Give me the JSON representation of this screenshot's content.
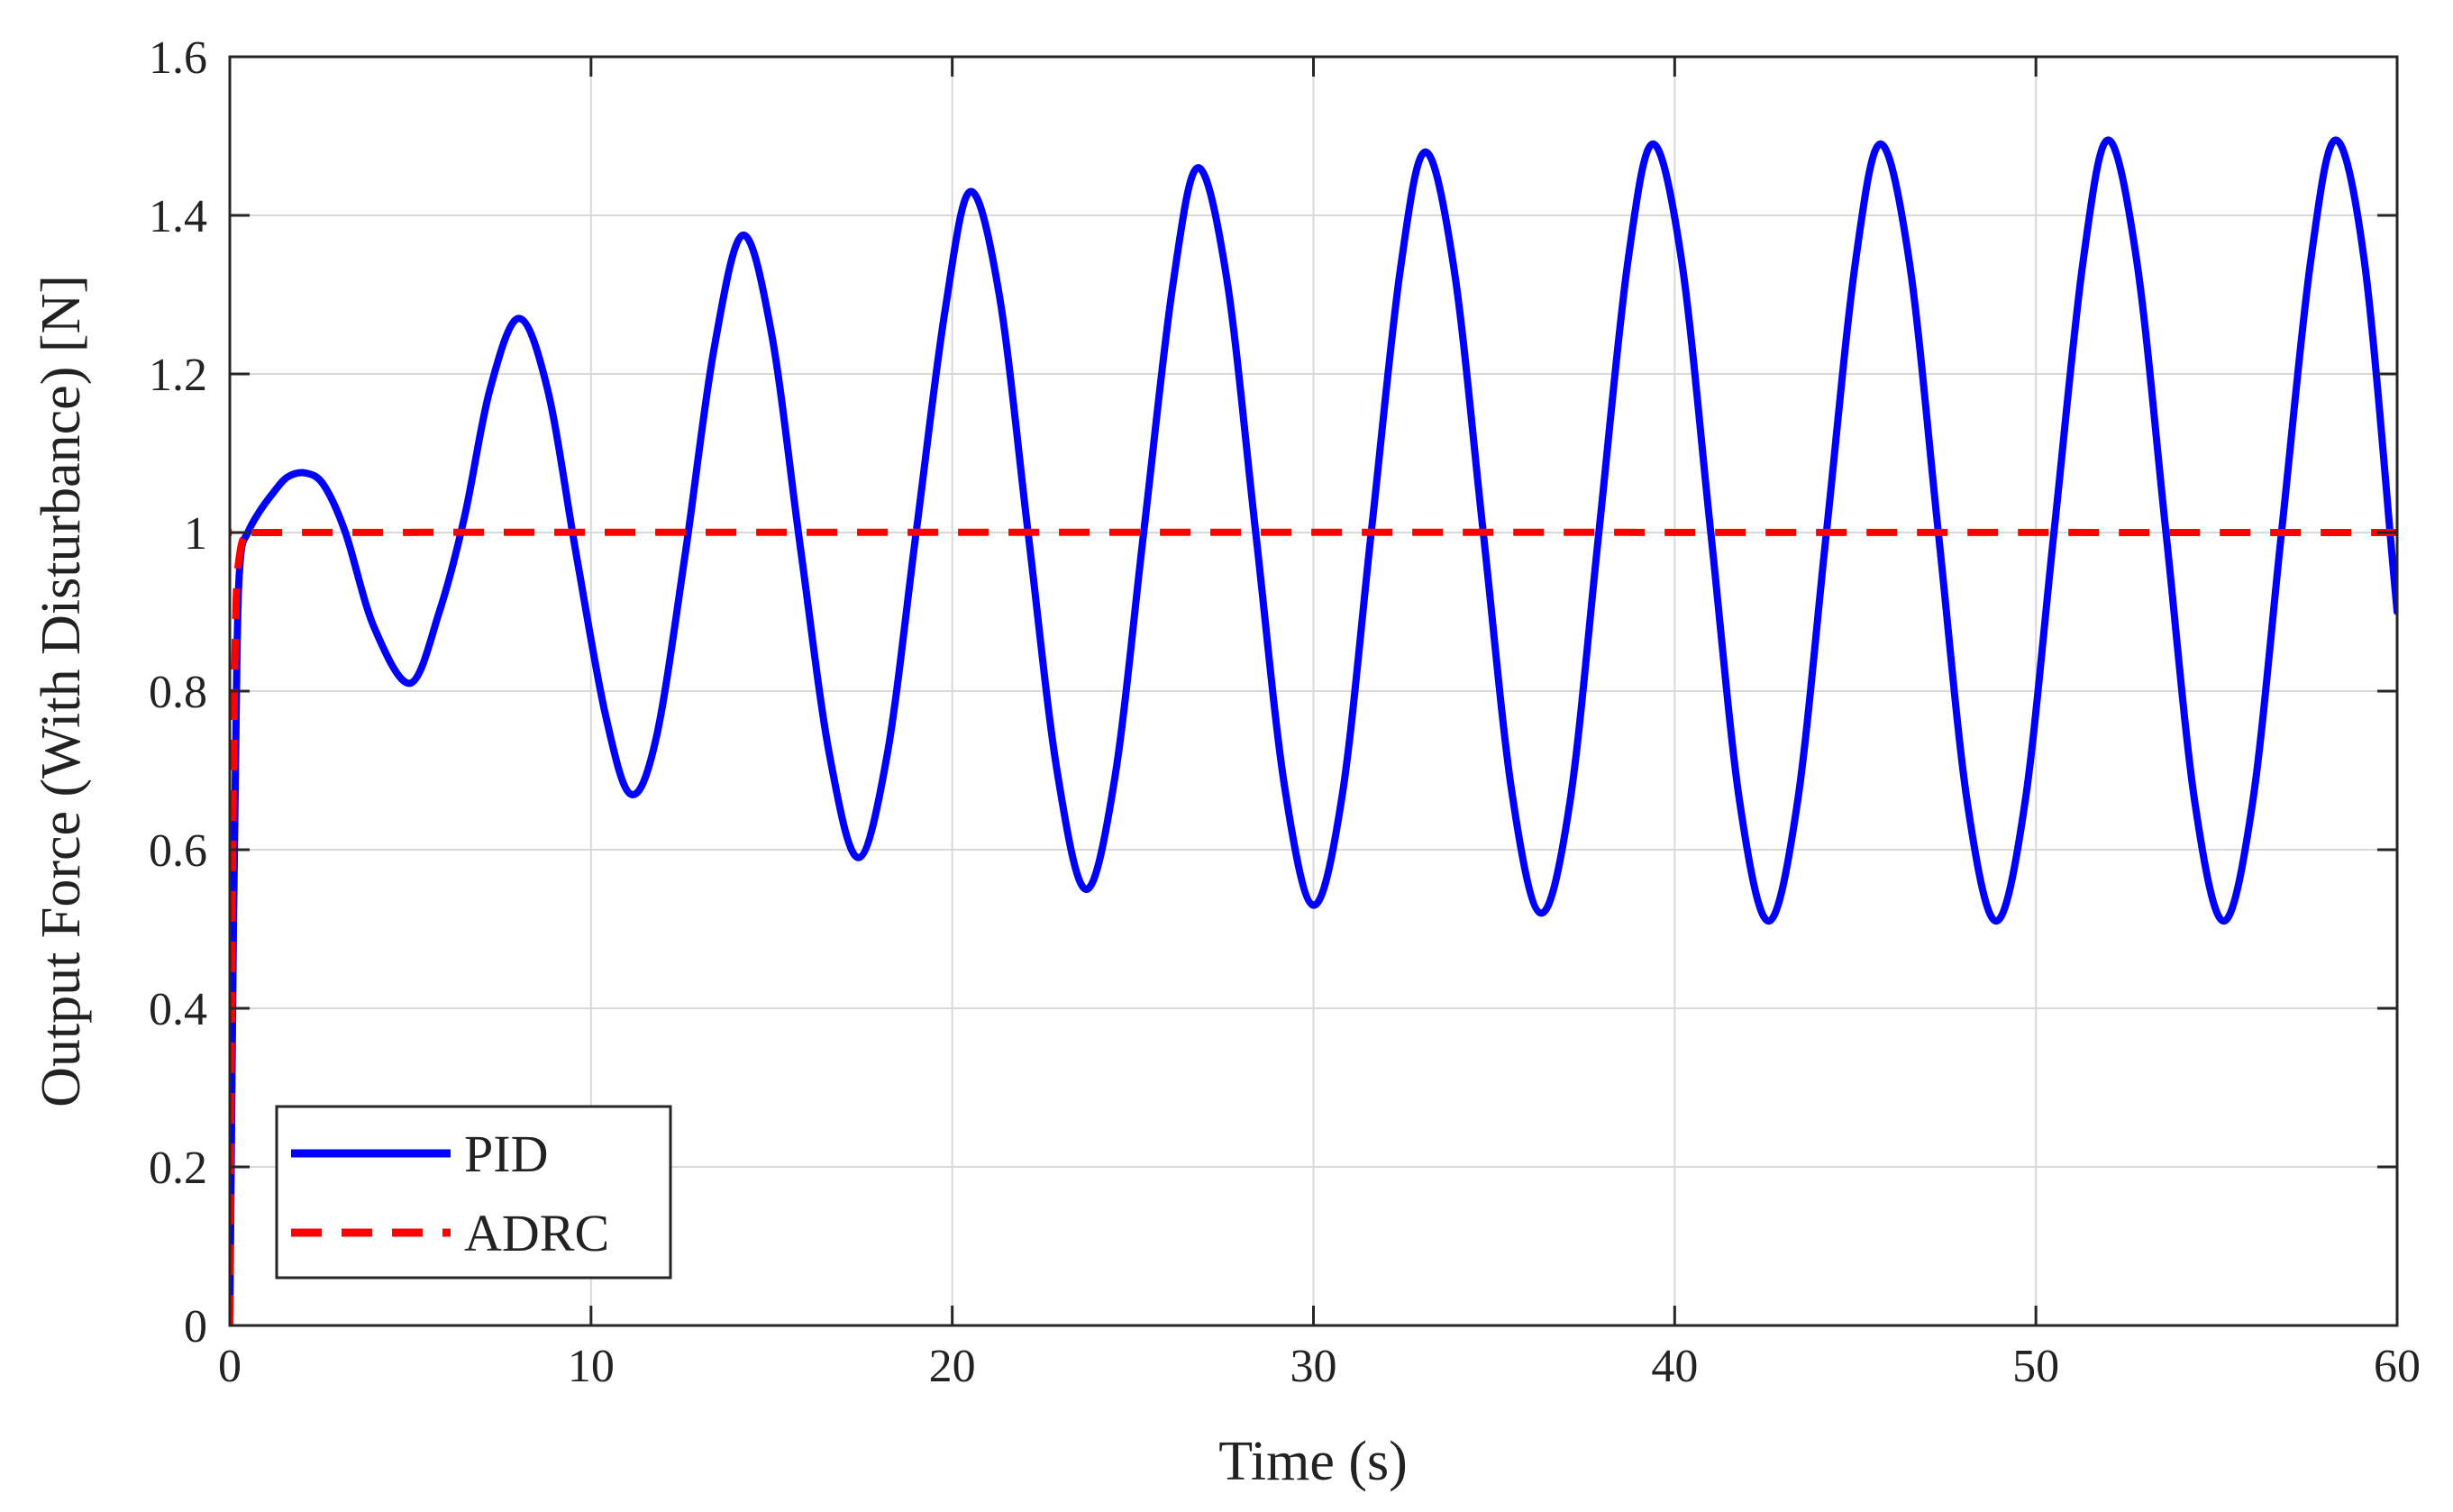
{
  "chart_data": {
    "type": "line",
    "title": "",
    "xlabel": "Time (s)",
    "ylabel": "Output Force (With Disturbance) [N]",
    "xlim": [
      0,
      60
    ],
    "ylim": [
      0,
      1.6
    ],
    "grid": true,
    "legend_position": "bottom-left",
    "x_ticks": [
      0,
      10,
      20,
      30,
      40,
      50,
      60
    ],
    "x_tick_labels": [
      "0",
      "10",
      "20",
      "30",
      "40",
      "50",
      "60"
    ],
    "y_ticks": [
      0,
      0.2,
      0.4,
      0.6,
      0.8,
      1,
      1.2,
      1.4,
      1.6
    ],
    "y_tick_labels": [
      "0",
      "0.2",
      "0.4",
      "0.6",
      "0.8",
      "1",
      "1.2",
      "1.4",
      "1.6"
    ],
    "series": [
      {
        "name": "PID",
        "color": "#0000ff",
        "style": "solid",
        "x": [
          0,
          0.1,
          0.2,
          0.3,
          0.5,
          0.8,
          1.2,
          1.6,
          2.1,
          2.6,
          3.2,
          4.0,
          5.0,
          5.8,
          6.5,
          7.2,
          8.0,
          8.8,
          9.6,
          10.4,
          11.1,
          11.8,
          12.6,
          13.4,
          14.2,
          15.0,
          15.8,
          16.6,
          17.4,
          18.2,
          19.0,
          19.8,
          20.5,
          21.3,
          22.1,
          22.9,
          23.7,
          24.5,
          25.3,
          26.1,
          26.8,
          27.6,
          28.4,
          29.2,
          30.0,
          30.8,
          31.6,
          32.4,
          33.1,
          33.9,
          34.7,
          35.5,
          36.3,
          37.1,
          37.9,
          38.7,
          39.4,
          40.2,
          41.0,
          41.8,
          42.6,
          43.4,
          44.2,
          45.0,
          45.7,
          46.5,
          47.3,
          48.1,
          48.9,
          49.7,
          50.5,
          51.3,
          52.0,
          52.8,
          53.6,
          54.4,
          55.2,
          56.0,
          56.8,
          57.6,
          58.3,
          59.1,
          59.9,
          60.0
        ],
        "y": [
          0,
          0.5,
          0.85,
          0.97,
          1.0,
          1.025,
          1.05,
          1.07,
          1.075,
          1.06,
          1.0,
          0.88,
          0.81,
          0.9,
          1.02,
          1.18,
          1.27,
          1.18,
          0.97,
          0.77,
          0.67,
          0.74,
          0.97,
          1.23,
          1.375,
          1.25,
          0.98,
          0.72,
          0.59,
          0.72,
          1.0,
          1.28,
          1.43,
          1.3,
          1.0,
          0.7,
          0.55,
          0.69,
          1.0,
          1.31,
          1.46,
          1.32,
          1.0,
          0.68,
          0.53,
          0.67,
          1.0,
          1.33,
          1.48,
          1.33,
          1.0,
          0.67,
          0.52,
          0.66,
          1.0,
          1.34,
          1.49,
          1.34,
          1.0,
          0.66,
          0.51,
          0.66,
          1.0,
          1.34,
          1.49,
          1.34,
          1.0,
          0.66,
          0.51,
          0.66,
          1.0,
          1.34,
          1.495,
          1.34,
          1.0,
          0.66,
          0.51,
          0.66,
          1.0,
          1.34,
          1.495,
          1.34,
          0.95,
          0.9
        ]
      },
      {
        "name": "ADRC",
        "color": "#ff0000",
        "style": "dashed",
        "x": [
          0,
          0.05,
          0.1,
          0.15,
          0.2,
          0.3,
          0.4,
          0.5,
          60
        ],
        "y": [
          0,
          0.4,
          0.7,
          0.86,
          0.94,
          0.98,
          0.995,
          1.0,
          1.0
        ]
      }
    ]
  }
}
